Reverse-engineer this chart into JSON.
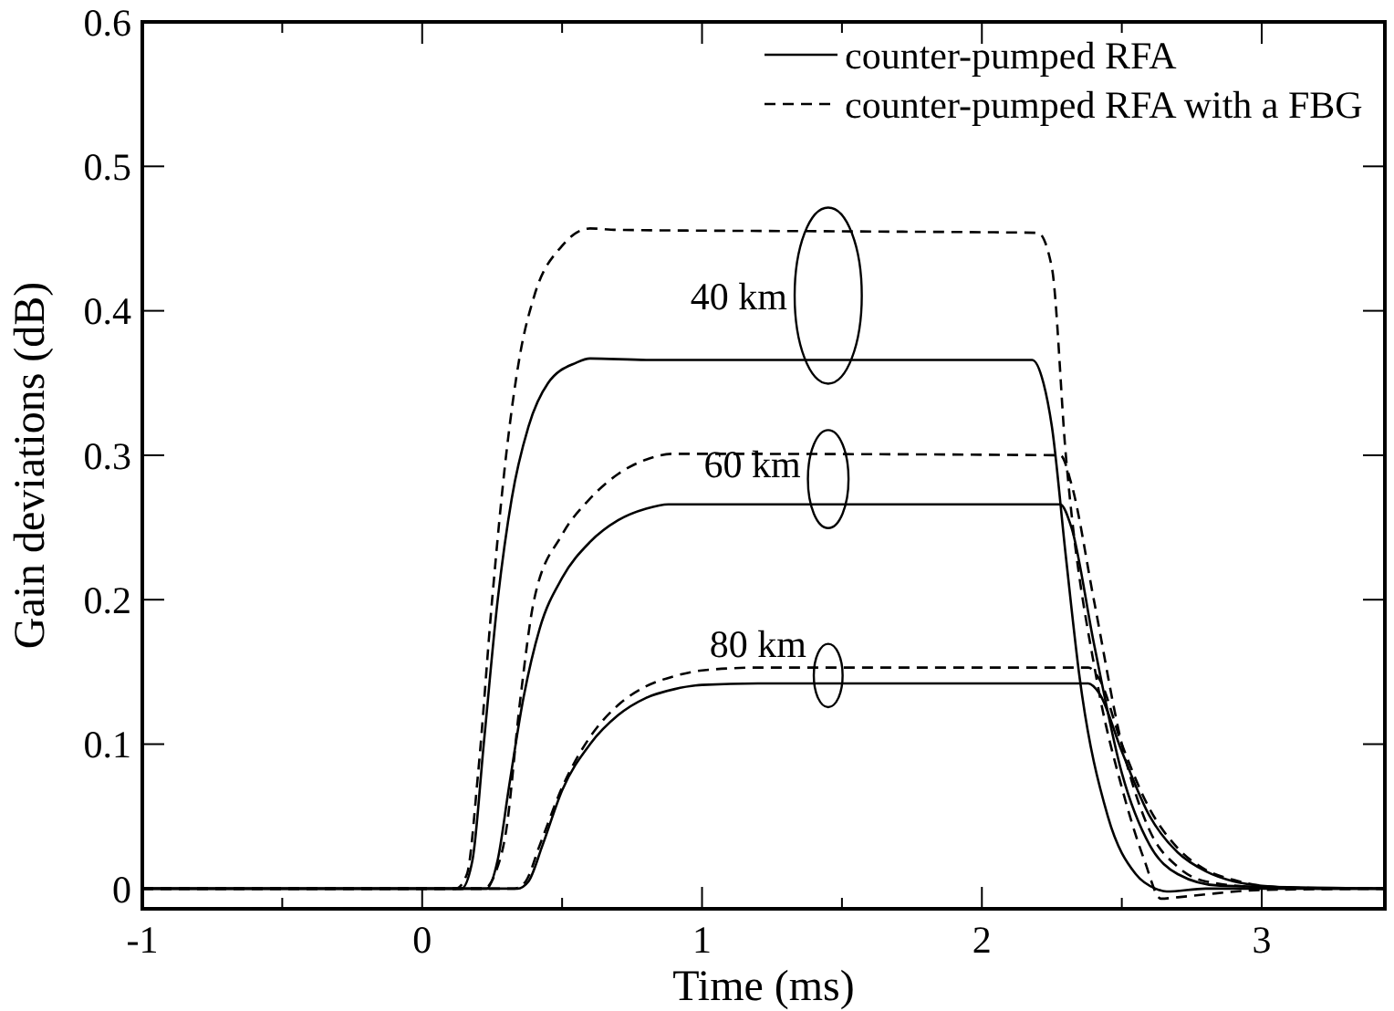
{
  "chart_data": {
    "type": "line",
    "xlabel": "Time (ms)",
    "ylabel": "Gain deviations (dB)",
    "xlim": [
      -1,
      3.44
    ],
    "ylim": [
      -0.014,
      0.6
    ],
    "xticks": [
      -1,
      {
        "value": -0.5,
        "label": null
      },
      0,
      {
        "value": 0.5,
        "label": null
      },
      1,
      {
        "value": 1.5,
        "label": null
      },
      2,
      {
        "value": 2.5,
        "label": null
      },
      3
    ],
    "yticks": [
      {
        "value": 0,
        "label": "0"
      },
      {
        "value": 0.1,
        "label": "0.1"
      },
      {
        "value": 0.2,
        "label": "0.2"
      },
      {
        "value": 0.3,
        "label": "0.3"
      },
      {
        "value": 0.4,
        "label": "0.4"
      },
      {
        "value": 0.5,
        "label": "0.5"
      },
      {
        "value": 0.6,
        "label": "0.6"
      }
    ],
    "grid": false,
    "legend": "top right",
    "marker": "none",
    "series": [
      {
        "name": "counter-pumped RFA",
        "color": "#000000",
        "line_style": "solid",
        "x": [
          -1,
          0.14,
          0.18,
          0.22,
          0.27,
          0.32,
          0.38,
          0.45,
          0.55,
          0.6,
          0.8,
          2.18,
          2.22,
          2.25,
          2.3,
          2.35,
          2.45,
          2.55,
          2.62,
          2.66,
          2.8,
          3.44
        ],
        "values": [
          0,
          0,
          0.02,
          0.1,
          0.2,
          0.27,
          0.32,
          0.35,
          0.364,
          0.367,
          0.366,
          0.366,
          0.35,
          0.32,
          0.23,
          0.145,
          0.05,
          0.01,
          0,
          -0.002,
          0,
          0
        ]
      },
      {
        "name": "counter-pumped RFA with a FBG",
        "color": "#000000",
        "line_style": "dashed",
        "x": [
          -1,
          0.12,
          0.16,
          0.2,
          0.25,
          0.3,
          0.35,
          0.4,
          0.5,
          0.6,
          0.7,
          1.5,
          2.2,
          2.25,
          2.3,
          2.41,
          2.5,
          2.58,
          2.64,
          2.7,
          2.8,
          3.0,
          3.44
        ],
        "values": [
          0,
          0,
          0.01,
          0.08,
          0.2,
          0.3,
          0.37,
          0.41,
          0.445,
          0.457,
          0.456,
          0.455,
          0.454,
          0.43,
          0.3,
          0.145,
          0.07,
          0.02,
          -0.007,
          -0.006,
          -0.004,
          -0.001,
          0
        ]
      },
      {
        "color": "#000000",
        "line_style": "solid",
        "x": [
          -1,
          0.23,
          0.27,
          0.31,
          0.36,
          0.42,
          0.5,
          0.6,
          0.7,
          0.8,
          0.88,
          2.28,
          2.32,
          2.4,
          2.5,
          2.6,
          2.7,
          2.85,
          3.44
        ],
        "values": [
          0,
          0,
          0.02,
          0.07,
          0.13,
          0.18,
          0.215,
          0.24,
          0.255,
          0.263,
          0.266,
          0.266,
          0.25,
          0.17,
          0.08,
          0.03,
          0.01,
          0.002,
          0
        ]
      },
      {
        "color": "#000000",
        "line_style": "dashed",
        "x": [
          -1,
          0.22,
          0.26,
          0.3,
          0.35,
          0.4,
          0.5,
          0.6,
          0.7,
          0.8,
          0.9,
          2.28,
          2.32,
          2.4,
          2.5,
          2.6,
          2.7,
          2.8,
          3.0,
          3.44
        ],
        "values": [
          0,
          0,
          0.01,
          0.04,
          0.13,
          0.2,
          0.245,
          0.27,
          0.287,
          0.297,
          0.301,
          0.3,
          0.28,
          0.2,
          0.1,
          0.04,
          0.015,
          0.005,
          0.001,
          0
        ]
      },
      {
        "color": "#000000",
        "line_style": "solid",
        "x": [
          -1,
          0.34,
          0.38,
          0.43,
          0.5,
          0.6,
          0.7,
          0.8,
          0.9,
          1.0,
          1.2,
          2.38,
          2.42,
          2.5,
          2.6,
          2.7,
          2.8,
          2.9,
          3.0,
          3.2,
          3.44
        ],
        "values": [
          0,
          0,
          0.005,
          0.03,
          0.068,
          0.1,
          0.12,
          0.132,
          0.138,
          0.141,
          0.142,
          0.142,
          0.135,
          0.095,
          0.05,
          0.025,
          0.012,
          0.005,
          0.002,
          0,
          0
        ]
      },
      {
        "color": "#000000",
        "line_style": "dashed",
        "x": [
          -1,
          0.33,
          0.37,
          0.42,
          0.5,
          0.6,
          0.7,
          0.8,
          0.9,
          1.0,
          1.2,
          2.38,
          2.42,
          2.5,
          2.6,
          2.7,
          2.8,
          2.9,
          3.0,
          3.2,
          3.44
        ],
        "values": [
          0,
          0,
          0.005,
          0.03,
          0.07,
          0.105,
          0.127,
          0.14,
          0.147,
          0.151,
          0.153,
          0.153,
          0.145,
          0.1,
          0.055,
          0.028,
          0.013,
          0.006,
          0.002,
          0,
          0
        ]
      }
    ],
    "annotations": [
      "40 km",
      "60 km",
      "80 km"
    ]
  }
}
